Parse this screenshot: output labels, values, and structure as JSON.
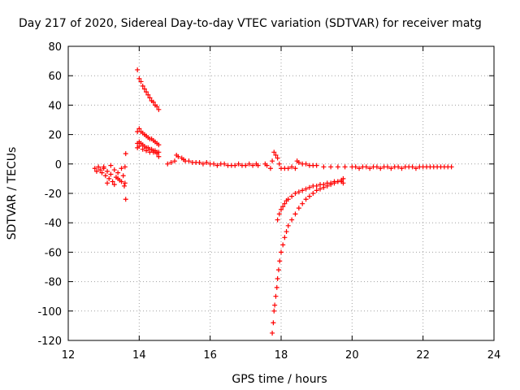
{
  "chart_data": {
    "type": "scatter",
    "title": "Day 217 of 2020, Sidereal Day-to-day VTEC variation (SDTVAR) for receiver matg",
    "xlabel": "GPS time / hours",
    "ylabel": "SDTVAR / TECUs",
    "xlim": [
      12,
      24
    ],
    "ylim": [
      -120,
      80
    ],
    "xticks": [
      12,
      14,
      16,
      18,
      20,
      22,
      24
    ],
    "yticks": [
      -120,
      -100,
      -80,
      -60,
      -40,
      -20,
      0,
      20,
      40,
      60,
      80
    ],
    "grid": true,
    "marker": "+",
    "color": "#ff0000",
    "series": [
      {
        "name": "cluster-12.8-13.6",
        "points": [
          [
            12.75,
            -3
          ],
          [
            12.8,
            -5
          ],
          [
            12.85,
            -2
          ],
          [
            12.9,
            -4
          ],
          [
            12.95,
            -6
          ],
          [
            13.0,
            -3
          ],
          [
            13.05,
            -8
          ],
          [
            13.1,
            -5
          ],
          [
            13.15,
            -10
          ],
          [
            13.2,
            -7
          ],
          [
            13.25,
            -12
          ],
          [
            13.3,
            -4
          ],
          [
            13.35,
            -9
          ],
          [
            13.4,
            -6
          ],
          [
            13.45,
            -11
          ],
          [
            13.5,
            -3
          ],
          [
            13.55,
            -8
          ],
          [
            13.6,
            -13
          ],
          [
            13.6,
            -2
          ],
          [
            13.62,
            7
          ],
          [
            13.62,
            -24
          ],
          [
            13.58,
            -15
          ],
          [
            13.1,
            -13
          ],
          [
            13.0,
            -2
          ],
          [
            13.2,
            -1
          ],
          [
            13.3,
            -14
          ],
          [
            13.4,
            -10
          ],
          [
            13.5,
            -12
          ]
        ]
      },
      {
        "name": "upper-arc-14",
        "points": [
          [
            13.95,
            64
          ],
          [
            14.0,
            58
          ],
          [
            14.05,
            56
          ],
          [
            14.1,
            53
          ],
          [
            14.15,
            51
          ],
          [
            14.2,
            49
          ],
          [
            14.25,
            47
          ],
          [
            14.3,
            45
          ],
          [
            14.35,
            43
          ],
          [
            14.4,
            42
          ],
          [
            14.45,
            40
          ],
          [
            14.5,
            39
          ],
          [
            14.55,
            37
          ]
        ]
      },
      {
        "name": "mid-arc-14",
        "points": [
          [
            13.95,
            22
          ],
          [
            14.0,
            24
          ],
          [
            14.05,
            22
          ],
          [
            14.1,
            21
          ],
          [
            14.15,
            20
          ],
          [
            14.2,
            19
          ],
          [
            14.25,
            18
          ],
          [
            14.3,
            17
          ],
          [
            14.35,
            17
          ],
          [
            14.4,
            16
          ],
          [
            14.45,
            15
          ],
          [
            14.5,
            14
          ],
          [
            14.55,
            13
          ],
          [
            13.95,
            14
          ],
          [
            14.0,
            15
          ],
          [
            14.05,
            14
          ],
          [
            14.1,
            13
          ],
          [
            14.15,
            12
          ],
          [
            14.2,
            11
          ],
          [
            14.25,
            11
          ],
          [
            14.3,
            10
          ],
          [
            14.35,
            10
          ],
          [
            14.4,
            9
          ],
          [
            14.45,
            9
          ],
          [
            14.5,
            8
          ],
          [
            14.55,
            8
          ],
          [
            13.95,
            11
          ],
          [
            14.0,
            12
          ],
          [
            14.1,
            10
          ],
          [
            14.2,
            9
          ],
          [
            14.3,
            8
          ],
          [
            14.4,
            8
          ],
          [
            14.5,
            7
          ],
          [
            14.55,
            5
          ]
        ]
      },
      {
        "name": "near-zero-14.8-17.4",
        "points": [
          [
            14.8,
            0
          ],
          [
            14.9,
            1
          ],
          [
            15.0,
            2
          ],
          [
            15.05,
            6
          ],
          [
            15.1,
            5
          ],
          [
            15.2,
            4
          ],
          [
            15.25,
            3
          ],
          [
            15.3,
            2
          ],
          [
            15.4,
            2
          ],
          [
            15.5,
            1
          ],
          [
            15.6,
            1
          ],
          [
            15.7,
            1
          ],
          [
            15.8,
            0
          ],
          [
            15.9,
            1
          ],
          [
            16.0,
            0
          ],
          [
            16.1,
            0
          ],
          [
            16.2,
            -1
          ],
          [
            16.3,
            0
          ],
          [
            16.4,
            0
          ],
          [
            16.5,
            -1
          ],
          [
            16.6,
            -1
          ],
          [
            16.7,
            -1
          ],
          [
            16.8,
            0
          ],
          [
            16.9,
            -1
          ],
          [
            17.0,
            -1
          ],
          [
            17.1,
            0
          ],
          [
            17.2,
            -1
          ],
          [
            17.3,
            0
          ],
          [
            17.35,
            -1
          ]
        ]
      },
      {
        "name": "near-zero-17.5-18.0",
        "points": [
          [
            17.55,
            0
          ],
          [
            17.6,
            -1
          ],
          [
            17.7,
            -3
          ],
          [
            17.75,
            2
          ],
          [
            17.8,
            8
          ],
          [
            17.85,
            6
          ],
          [
            17.9,
            4
          ],
          [
            17.95,
            0
          ],
          [
            18.0,
            -3
          ],
          [
            18.1,
            -3
          ],
          [
            18.2,
            -3
          ],
          [
            18.3,
            -2
          ],
          [
            18.4,
            -3
          ]
        ]
      },
      {
        "name": "post-18.4-arc",
        "points": [
          [
            18.45,
            2
          ],
          [
            18.5,
            1
          ],
          [
            18.6,
            0
          ],
          [
            18.7,
            0
          ],
          [
            18.8,
            -1
          ],
          [
            18.9,
            -1
          ],
          [
            19.0,
            -1
          ],
          [
            19.2,
            -2
          ],
          [
            19.4,
            -2
          ],
          [
            19.6,
            -2
          ],
          [
            19.8,
            -2
          ]
        ]
      },
      {
        "name": "deep-drop-17.8",
        "points": [
          [
            17.75,
            -115
          ],
          [
            17.78,
            -108
          ],
          [
            17.8,
            -100
          ],
          [
            17.82,
            -96
          ],
          [
            17.85,
            -90
          ],
          [
            17.88,
            -84
          ],
          [
            17.9,
            -78
          ],
          [
            17.93,
            -72
          ],
          [
            17.96,
            -66
          ],
          [
            18.0,
            -60
          ],
          [
            18.05,
            -55
          ],
          [
            18.1,
            -50
          ],
          [
            18.15,
            -46
          ],
          [
            18.2,
            -42
          ],
          [
            18.3,
            -38
          ],
          [
            18.4,
            -34
          ],
          [
            18.5,
            -30
          ],
          [
            18.6,
            -27
          ],
          [
            18.7,
            -24
          ],
          [
            18.8,
            -22
          ],
          [
            18.9,
            -20
          ],
          [
            19.0,
            -18
          ],
          [
            19.1,
            -17
          ],
          [
            19.2,
            -16
          ],
          [
            19.3,
            -15
          ],
          [
            19.4,
            -14
          ],
          [
            19.5,
            -13
          ],
          [
            19.6,
            -12
          ],
          [
            19.7,
            -11
          ],
          [
            19.75,
            -10
          ]
        ]
      },
      {
        "name": "upper-recovery-17.9",
        "points": [
          [
            17.9,
            -38
          ],
          [
            17.95,
            -34
          ],
          [
            18.0,
            -31
          ],
          [
            18.05,
            -29
          ],
          [
            18.1,
            -27
          ],
          [
            18.15,
            -25
          ],
          [
            18.2,
            -24
          ],
          [
            18.3,
            -22
          ],
          [
            18.4,
            -20
          ],
          [
            18.5,
            -19
          ],
          [
            18.6,
            -18
          ],
          [
            18.7,
            -17
          ],
          [
            18.8,
            -16
          ],
          [
            18.9,
            -15
          ],
          [
            19.0,
            -15
          ],
          [
            19.1,
            -14
          ],
          [
            19.2,
            -14
          ],
          [
            19.3,
            -13
          ],
          [
            19.4,
            -13
          ],
          [
            19.5,
            -12
          ],
          [
            19.6,
            -12
          ],
          [
            19.7,
            -12
          ],
          [
            19.75,
            -13
          ]
        ]
      },
      {
        "name": "near-zero-20-22.8",
        "points": [
          [
            20.0,
            -2
          ],
          [
            20.1,
            -2
          ],
          [
            20.2,
            -3
          ],
          [
            20.3,
            -2
          ],
          [
            20.4,
            -2
          ],
          [
            20.5,
            -3
          ],
          [
            20.6,
            -2
          ],
          [
            20.7,
            -2
          ],
          [
            20.8,
            -3
          ],
          [
            20.9,
            -2
          ],
          [
            21.0,
            -2
          ],
          [
            21.1,
            -3
          ],
          [
            21.2,
            -2
          ],
          [
            21.3,
            -2
          ],
          [
            21.4,
            -3
          ],
          [
            21.5,
            -2
          ],
          [
            21.6,
            -2
          ],
          [
            21.7,
            -2
          ],
          [
            21.8,
            -3
          ],
          [
            21.9,
            -2
          ],
          [
            22.0,
            -2
          ],
          [
            22.1,
            -2
          ],
          [
            22.2,
            -2
          ],
          [
            22.3,
            -2
          ],
          [
            22.4,
            -2
          ],
          [
            22.5,
            -2
          ],
          [
            22.6,
            -2
          ],
          [
            22.7,
            -2
          ],
          [
            22.8,
            -2
          ]
        ]
      }
    ]
  }
}
